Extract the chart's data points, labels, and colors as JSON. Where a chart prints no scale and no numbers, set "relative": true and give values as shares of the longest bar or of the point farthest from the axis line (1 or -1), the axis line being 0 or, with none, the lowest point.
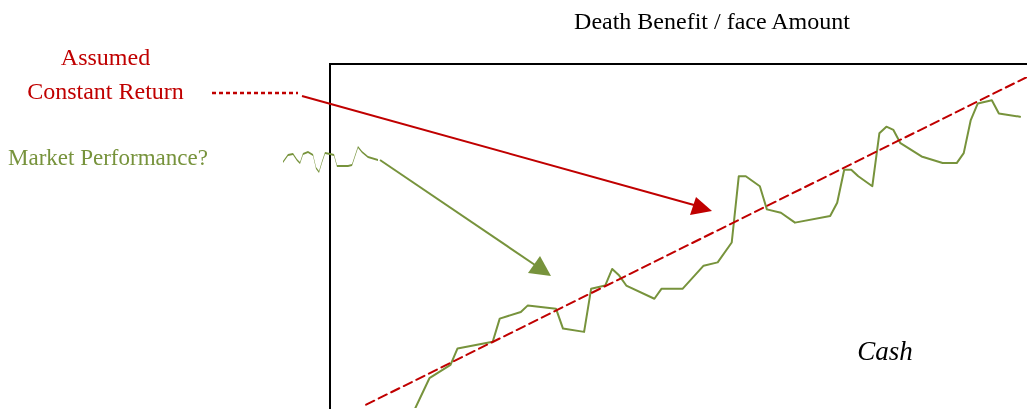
{
  "chart_data": {
    "type": "line",
    "title": "Death Benefit / face Amount",
    "relative": true,
    "grid": false,
    "marker": "none",
    "annotations": [
      "Cash"
    ],
    "categories": [
      null,
      null,
      null,
      null,
      null,
      null,
      null,
      null,
      null,
      null,
      null,
      null,
      null,
      null,
      null,
      null,
      null,
      null,
      null,
      null,
      null,
      null,
      null,
      null,
      null,
      null,
      null,
      null,
      null,
      null,
      null,
      null,
      null,
      null,
      null,
      null,
      null,
      null,
      null,
      null,
      null,
      null,
      null,
      null,
      null,
      null,
      null,
      null,
      null,
      null,
      null,
      null,
      null,
      null,
      null,
      null,
      null,
      null,
      null,
      null,
      null,
      null,
      null,
      null,
      null,
      null,
      null,
      null,
      null,
      null,
      null,
      null,
      null,
      null,
      null,
      null,
      null,
      null,
      null,
      null,
      null,
      null,
      null,
      null,
      null,
      null,
      null,
      null,
      null,
      null,
      null,
      null,
      null,
      null,
      null,
      null,
      null,
      null,
      null,
      null
    ],
    "series": [
      {
        "name": "Assumed Constant Return",
        "color": "#c00000",
        "line_style": "dashed",
        "values": [
          null,
          null,
          null,
          null,
          null,
          0.01,
          null,
          null,
          null,
          null,
          null,
          null,
          null,
          null,
          null,
          null,
          null,
          null,
          null,
          null,
          null,
          null,
          null,
          null,
          null,
          null,
          null,
          null,
          null,
          null,
          null,
          null,
          null,
          null,
          null,
          null,
          null,
          null,
          null,
          null,
          null,
          null,
          null,
          null,
          null,
          null,
          null,
          null,
          null,
          null,
          null,
          null,
          null,
          null,
          null,
          null,
          null,
          null,
          null,
          null,
          null,
          null,
          null,
          null,
          null,
          null,
          null,
          null,
          null,
          null,
          null,
          null,
          null,
          null,
          null,
          null,
          null,
          null,
          null,
          null,
          null,
          null,
          null,
          null,
          null,
          null,
          null,
          null,
          null,
          null,
          null,
          null,
          null,
          null,
          null,
          null,
          null,
          null,
          null,
          1
        ]
      },
      {
        "name": "Market Performance?",
        "color": "#77933c",
        "line_style": "solid",
        "values": [
          null,
          null,
          null,
          null,
          null,
          null,
          null,
          null,
          null,
          null,
          null,
          null,
          0.0,
          null,
          0.09,
          null,
          null,
          0.13,
          0.18,
          null,
          null,
          null,
          null,
          0.2,
          0.27,
          null,
          null,
          0.29,
          0.31,
          null,
          null,
          null,
          0.3,
          0.24,
          null,
          null,
          0.23,
          0.36,
          null,
          0.37,
          0.42,
          0.4,
          0.37,
          null,
          null,
          null,
          0.33,
          0.36,
          null,
          null,
          0.36,
          null,
          null,
          0.43,
          null,
          0.44,
          null,
          0.5,
          0.7,
          0.7,
          null,
          0.67,
          0.6,
          null,
          0.59,
          null,
          0.56,
          null,
          null,
          null,
          null,
          0.58,
          0.62,
          0.72,
          0.72,
          0.7,
          null,
          0.67,
          0.83,
          0.85,
          0.84,
          0.8,
          null,
          null,
          0.76,
          null,
          null,
          0.74,
          null,
          0.74,
          0.77,
          0.87,
          0.92,
          null,
          0.93,
          0.89,
          null,
          null,
          0.88,
          null
        ]
      }
    ]
  }
}
